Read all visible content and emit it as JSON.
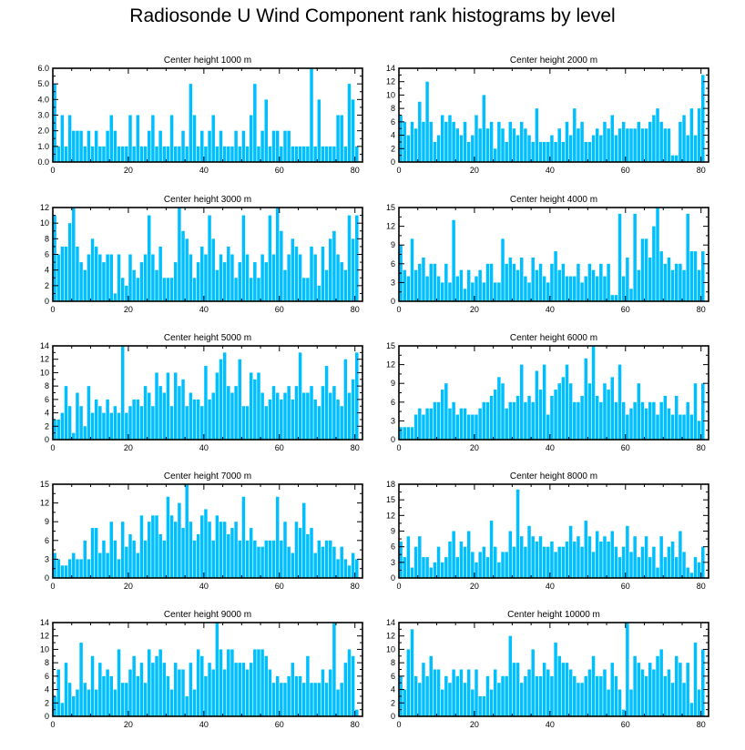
{
  "figure": {
    "title": "Radiosonde U Wind Component rank histograms by level"
  },
  "colors": {
    "bar": "#00BFFF",
    "axis": "#000000"
  },
  "chart_data": [
    {
      "type": "bar",
      "title": "Center height 1000 m",
      "x_start": 0,
      "xlim": [
        0,
        82
      ],
      "x_ticks": [
        0,
        20,
        40,
        60,
        80
      ],
      "x_tick_labels": [
        "0",
        "20",
        "40",
        "60",
        "80"
      ],
      "ylim": [
        0,
        6
      ],
      "y_ticks": [
        0,
        1,
        2,
        3,
        4,
        5,
        6
      ],
      "y_tick_labels": [
        "0.0",
        "1.0",
        "2.0",
        "3.0",
        "4.0",
        "5.0",
        "6.0"
      ],
      "values": [
        5,
        1,
        3,
        1,
        3,
        2,
        2,
        2,
        1,
        2,
        1,
        2,
        1,
        1,
        2,
        3,
        2,
        1,
        1,
        1,
        3,
        1,
        3,
        1,
        1,
        2,
        3,
        1,
        2,
        1,
        1,
        3,
        1,
        1,
        2,
        1,
        5,
        3,
        1,
        2,
        1,
        2,
        3,
        1,
        2,
        1,
        1,
        1,
        2,
        1,
        2,
        1,
        3,
        5,
        1,
        2,
        4,
        1,
        2,
        2,
        1,
        2,
        2,
        1,
        1,
        1,
        1,
        1,
        6,
        1,
        4,
        1,
        1,
        1,
        1,
        3,
        3,
        1,
        5,
        4,
        1
      ]
    },
    {
      "type": "bar",
      "title": "Center height 2000 m",
      "x_start": 0,
      "xlim": [
        0,
        82
      ],
      "x_ticks": [
        0,
        20,
        40,
        60,
        80
      ],
      "x_tick_labels": [
        "0",
        "20",
        "40",
        "60",
        "80"
      ],
      "ylim": [
        0,
        14
      ],
      "y_ticks": [
        0,
        2,
        4,
        6,
        8,
        10,
        12,
        14
      ],
      "y_tick_labels": [
        "0",
        "2",
        "4",
        "6",
        "8",
        "10",
        "12",
        "14"
      ],
      "values": [
        7,
        6,
        4,
        6,
        5,
        9,
        6,
        12,
        6,
        3,
        4,
        7,
        6,
        7,
        6,
        5,
        4,
        6,
        3,
        4,
        7,
        5,
        10,
        5,
        6,
        2,
        6,
        5,
        3,
        6,
        5,
        4,
        6,
        5,
        4,
        3,
        8,
        3,
        3,
        3,
        4,
        3,
        5,
        3,
        6,
        4,
        8,
        5,
        6,
        3,
        3,
        4,
        5,
        4,
        6,
        5,
        7,
        4,
        5,
        6,
        5,
        5,
        5,
        6,
        5,
        5,
        6,
        7,
        8,
        6,
        5,
        5,
        1,
        1,
        6,
        7,
        4,
        8,
        4,
        8,
        13
      ]
    },
    {
      "type": "bar",
      "title": "Center height 3000 m",
      "x_start": 0,
      "xlim": [
        0,
        82
      ],
      "x_ticks": [
        0,
        20,
        40,
        60,
        80
      ],
      "x_tick_labels": [
        "0",
        "20",
        "40",
        "60",
        "80"
      ],
      "ylim": [
        0,
        12
      ],
      "y_ticks": [
        0,
        2,
        4,
        6,
        8,
        10,
        12
      ],
      "y_tick_labels": [
        "0",
        "2",
        "4",
        "6",
        "8",
        "10",
        "12"
      ],
      "values": [
        11,
        6,
        7,
        7,
        10,
        12,
        7,
        5,
        4,
        6,
        8,
        7,
        6,
        5,
        6,
        6,
        1,
        6,
        3,
        2,
        6,
        4,
        3,
        5,
        6,
        11,
        6,
        4,
        7,
        3,
        3,
        3,
        5,
        12,
        9,
        8,
        6,
        3,
        5,
        7,
        6,
        11,
        8,
        4,
        6,
        5,
        7,
        6,
        3,
        5,
        11,
        6,
        3,
        5,
        3,
        6,
        5,
        11,
        6,
        12,
        9,
        4,
        6,
        8,
        7,
        6,
        3,
        3,
        7,
        6,
        2,
        7,
        4,
        8,
        9,
        6,
        5,
        4,
        11,
        8,
        11
      ]
    },
    {
      "type": "bar",
      "title": "Center height 4000 m",
      "x_start": 0,
      "xlim": [
        0,
        82
      ],
      "x_ticks": [
        0,
        20,
        40,
        60,
        80
      ],
      "x_tick_labels": [
        "0",
        "20",
        "40",
        "60",
        "80"
      ],
      "ylim": [
        0,
        15
      ],
      "y_ticks": [
        0,
        3,
        6,
        9,
        12,
        15
      ],
      "y_tick_labels": [
        "0",
        "3",
        "6",
        "9",
        "12",
        "15"
      ],
      "values": [
        9,
        5,
        4,
        10,
        5,
        6,
        7,
        4,
        6,
        6,
        4,
        3,
        6,
        3,
        13,
        4,
        5,
        2,
        5,
        3,
        4,
        5,
        3,
        6,
        6,
        3,
        3,
        10,
        6,
        7,
        6,
        5,
        7,
        4,
        3,
        7,
        5,
        6,
        4,
        3,
        6,
        8,
        5,
        6,
        4,
        4,
        4,
        6,
        3,
        4,
        6,
        5,
        4,
        6,
        4,
        6,
        1,
        1,
        14,
        4,
        7,
        2,
        14,
        5,
        10,
        10,
        7,
        12,
        15,
        8,
        6,
        7,
        5,
        6,
        6,
        5,
        14,
        8,
        8,
        5,
        8
      ]
    },
    {
      "type": "bar",
      "title": "Center height 5000 m",
      "x_start": 0,
      "xlim": [
        0,
        82
      ],
      "x_ticks": [
        0,
        20,
        40,
        60,
        80
      ],
      "x_tick_labels": [
        "0",
        "20",
        "40",
        "60",
        "80"
      ],
      "ylim": [
        0,
        14
      ],
      "y_ticks": [
        0,
        2,
        4,
        6,
        8,
        10,
        12,
        14
      ],
      "y_tick_labels": [
        "0",
        "2",
        "4",
        "6",
        "8",
        "10",
        "12",
        "14"
      ],
      "values": [
        3,
        3,
        4,
        8,
        5,
        1,
        7,
        5,
        2,
        8,
        4,
        6,
        5,
        4,
        6,
        4,
        5,
        4,
        14,
        4,
        5,
        6,
        6,
        5,
        8,
        7,
        5,
        10,
        8,
        7,
        10,
        5,
        10,
        8,
        9,
        5,
        7,
        6,
        6,
        5,
        11,
        6,
        7,
        10,
        12,
        13,
        8,
        7,
        8,
        12,
        5,
        5,
        10,
        9,
        10,
        7,
        5,
        6,
        8,
        7,
        6,
        7,
        8,
        6,
        8,
        13,
        7,
        7,
        8,
        6,
        5,
        8,
        11,
        7,
        8,
        6,
        5,
        12,
        7,
        9,
        13
      ]
    },
    {
      "type": "bar",
      "title": "Center height 6000 m",
      "x_start": 0,
      "xlim": [
        0,
        82
      ],
      "x_ticks": [
        0,
        20,
        40,
        60,
        80
      ],
      "x_tick_labels": [
        "0",
        "20",
        "40",
        "60",
        "80"
      ],
      "ylim": [
        0,
        15
      ],
      "y_ticks": [
        0,
        3,
        6,
        9,
        12,
        15
      ],
      "y_tick_labels": [
        "0",
        "3",
        "6",
        "9",
        "12",
        "15"
      ],
      "values": [
        2,
        2,
        2,
        2,
        4,
        5,
        4,
        5,
        5,
        6,
        6,
        8,
        9,
        5,
        6,
        4,
        5,
        5,
        4,
        4,
        4,
        5,
        6,
        6,
        7,
        8,
        10,
        9,
        5,
        6,
        6,
        7,
        12,
        6,
        7,
        6,
        11,
        8,
        12,
        4,
        7,
        8,
        9,
        10,
        12,
        9,
        6,
        6,
        7,
        13,
        9,
        15,
        7,
        6,
        9,
        8,
        10,
        6,
        12,
        6,
        4,
        5,
        6,
        9,
        6,
        5,
        6,
        6,
        4,
        6,
        7,
        5,
        4,
        7,
        4,
        4,
        6,
        4,
        9,
        3,
        9
      ]
    },
    {
      "type": "bar",
      "title": "Center height 7000 m",
      "x_start": 0,
      "xlim": [
        0,
        82
      ],
      "x_ticks": [
        0,
        20,
        40,
        60,
        80
      ],
      "x_tick_labels": [
        "0",
        "20",
        "40",
        "60",
        "80"
      ],
      "ylim": [
        0,
        15
      ],
      "y_ticks": [
        0,
        3,
        6,
        9,
        12,
        15
      ],
      "y_tick_labels": [
        "0",
        "3",
        "6",
        "9",
        "12",
        "15"
      ],
      "values": [
        4,
        3,
        2,
        2,
        3,
        4,
        3,
        3,
        6,
        3,
        8,
        8,
        4,
        6,
        4,
        9,
        6,
        3,
        9,
        5,
        7,
        6,
        4,
        10,
        6,
        9,
        10,
        10,
        7,
        6,
        13,
        10,
        9,
        12,
        8,
        15,
        9,
        6,
        7,
        10,
        11,
        9,
        6,
        10,
        9,
        9,
        7,
        8,
        9,
        6,
        13,
        6,
        8,
        6,
        5,
        5,
        6,
        6,
        6,
        13,
        6,
        9,
        5,
        4,
        9,
        8,
        12,
        7,
        8,
        4,
        6,
        5,
        6,
        6,
        5,
        3,
        5,
        3,
        2,
        4,
        3
      ]
    },
    {
      "type": "bar",
      "title": "Center height 8000 m",
      "x_start": 0,
      "xlim": [
        0,
        82
      ],
      "x_ticks": [
        0,
        20,
        40,
        60,
        80
      ],
      "x_tick_labels": [
        "0",
        "20",
        "40",
        "60",
        "80"
      ],
      "ylim": [
        0,
        18
      ],
      "y_ticks": [
        0,
        3,
        6,
        9,
        12,
        15,
        18
      ],
      "y_tick_labels": [
        "0",
        "3",
        "6",
        "9",
        "12",
        "15",
        "18"
      ],
      "values": [
        7,
        4,
        8,
        2,
        6,
        8,
        4,
        4,
        2,
        3,
        6,
        3,
        4,
        7,
        9,
        4,
        7,
        6,
        9,
        5,
        3,
        5,
        6,
        4,
        11,
        6,
        3,
        5,
        5,
        9,
        6,
        17,
        8,
        6,
        10,
        8,
        7,
        8,
        6,
        6,
        7,
        5,
        6,
        6,
        7,
        10,
        7,
        8,
        6,
        11,
        8,
        5,
        9,
        7,
        8,
        7,
        9,
        6,
        4,
        6,
        10,
        5,
        8,
        4,
        6,
        8,
        4,
        6,
        2,
        8,
        4,
        6,
        7,
        4,
        9,
        5,
        2,
        1,
        4,
        3,
        6
      ]
    },
    {
      "type": "bar",
      "title": "Center height 9000 m",
      "x_start": 0,
      "xlim": [
        0,
        82
      ],
      "x_ticks": [
        0,
        20,
        40,
        60,
        80
      ],
      "x_tick_labels": [
        "0",
        "20",
        "40",
        "60",
        "80"
      ],
      "ylim": [
        0,
        14
      ],
      "y_ticks": [
        0,
        2,
        4,
        6,
        8,
        10,
        12,
        14
      ],
      "y_tick_labels": [
        "0",
        "2",
        "4",
        "6",
        "8",
        "10",
        "12",
        "14"
      ],
      "values": [
        3,
        7,
        2,
        8,
        5,
        3,
        4,
        11,
        5,
        4,
        9,
        4,
        8,
        6,
        7,
        6,
        4,
        10,
        5,
        5,
        7,
        9,
        6,
        8,
        5,
        10,
        8,
        9,
        10,
        8,
        6,
        4,
        8,
        7,
        7,
        3,
        8,
        4,
        10,
        9,
        6,
        8,
        7,
        14,
        10,
        7,
        10,
        10,
        8,
        8,
        8,
        7,
        8,
        10,
        10,
        10,
        9,
        7,
        5,
        6,
        5,
        5,
        6,
        8,
        6,
        6,
        5,
        9,
        5,
        5,
        5,
        7,
        5,
        7,
        14,
        4,
        5,
        8,
        10,
        9,
        1
      ]
    },
    {
      "type": "bar",
      "title": "Center height 10000 m",
      "x_start": 0,
      "xlim": [
        0,
        82
      ],
      "x_ticks": [
        0,
        20,
        40,
        60,
        80
      ],
      "x_tick_labels": [
        "0",
        "20",
        "40",
        "60",
        "80"
      ],
      "ylim": [
        0,
        14
      ],
      "y_ticks": [
        0,
        2,
        4,
        6,
        8,
        10,
        12,
        14
      ],
      "y_tick_labels": [
        "0",
        "2",
        "4",
        "6",
        "8",
        "10",
        "12",
        "14"
      ],
      "values": [
        6,
        4,
        10,
        13,
        6,
        5,
        8,
        6,
        9,
        7,
        7,
        4,
        6,
        5,
        7,
        6,
        7,
        5,
        7,
        4,
        7,
        3,
        3,
        6,
        4,
        7,
        5,
        6,
        6,
        12,
        8,
        8,
        5,
        6,
        7,
        10,
        6,
        6,
        8,
        7,
        6,
        11,
        9,
        8,
        8,
        7,
        6,
        5,
        5,
        6,
        7,
        9,
        6,
        6,
        7,
        4,
        8,
        6,
        4,
        1,
        14,
        4,
        9,
        8,
        7,
        6,
        8,
        7,
        9,
        10,
        6,
        7,
        5,
        9,
        8,
        5,
        8,
        2,
        11,
        4,
        10
      ]
    }
  ]
}
